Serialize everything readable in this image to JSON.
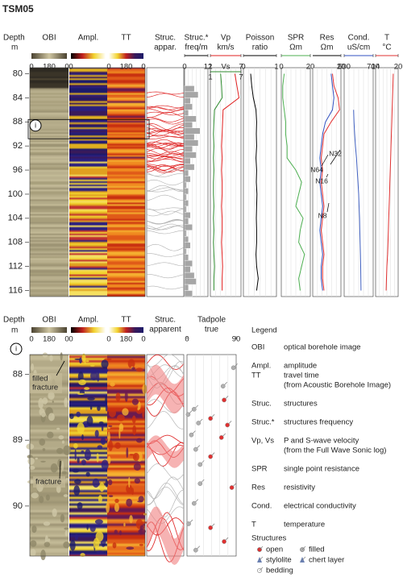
{
  "title": "TSM05",
  "images": [
    {
      "label": "OBI",
      "lim": [
        0,
        360
      ],
      "ticks": [
        0,
        180,
        {
          "value": 360,
          "label": "0"
        }
      ]
    },
    {
      "label": "Ampl.",
      "lim": [
        0,
        360
      ],
      "ticks": [
        0
      ]
    },
    {
      "label": "TT",
      "lim": [
        0,
        360
      ],
      "ticks": [
        0,
        180,
        {
          "value": 360,
          "label": "0"
        }
      ]
    }
  ],
  "top_panel": {
    "depth_label": "Depth",
    "depth_unit": "m",
    "ylim": [
      79,
      117
    ],
    "yticks": [
      80,
      84,
      88,
      92,
      96,
      100,
      104,
      108,
      112,
      116
    ],
    "struc_label": [
      "Struc.",
      "appar."
    ],
    "circle_label": "i",
    "annotations": [
      "N64",
      "N32",
      "N16",
      "N8"
    ]
  },
  "chart_data": [
    {
      "type": "histogram",
      "title": "Struc.*",
      "xlabel": "freq/m",
      "color": "#a6a6a6",
      "axis_color": "#000000",
      "xlim": [
        0,
        12
      ],
      "xticks": [
        0,
        12
      ],
      "ylim": [
        79,
        117
      ],
      "bins": [
        82,
        83,
        84,
        85,
        86,
        87,
        88,
        89,
        90,
        91,
        92,
        93,
        94,
        95,
        96,
        97,
        98,
        99,
        100,
        101,
        102,
        103,
        104,
        105,
        106,
        107,
        108,
        109,
        110,
        111,
        112,
        113,
        114,
        115,
        116,
        117
      ],
      "values": [
        5,
        7,
        3,
        4,
        2,
        6,
        4,
        8,
        5,
        7,
        4,
        6,
        3,
        5,
        2,
        3,
        1,
        2,
        1,
        2,
        1,
        3,
        2,
        4,
        1,
        2,
        3,
        1,
        2,
        4,
        3,
        5,
        6,
        2,
        4
      ]
    },
    {
      "type": "line",
      "title": "Vp",
      "xlabel": "km/s",
      "axis_color": "#e02020",
      "xlim": [
        1,
        7
      ],
      "xticks": [
        1,
        7
      ],
      "x2label": "Vs",
      "x2lim": [
        1,
        7
      ],
      "x2ticks": [
        1,
        7
      ],
      "x2color": "#2e8b2e",
      "ylim": [
        79,
        117
      ],
      "y": [
        80,
        82,
        84,
        86,
        88,
        90,
        92,
        94,
        96,
        98,
        100,
        102,
        104,
        106,
        108,
        110,
        112,
        114,
        116
      ],
      "series": [
        {
          "color": "#e02020",
          "values": [
            5.8,
            6.2,
            6.6,
            3.5,
            3.4,
            3.3,
            3.2,
            3.3,
            3.2,
            3.3,
            3.3,
            3.2,
            3.3,
            3.3,
            3.2,
            3.3,
            3.4,
            3.3,
            3.3
          ]
        },
        {
          "color": "#2e8b2e",
          "axis": "x2",
          "values": [
            3.0,
            3.2,
            3.3,
            1.8,
            1.7,
            1.6,
            1.7,
            1.6,
            1.7,
            1.6,
            1.6,
            1.7,
            1.6,
            1.7,
            1.6,
            1.7,
            1.8,
            1.7,
            1.7
          ]
        }
      ]
    },
    {
      "type": "line",
      "title": "Poisson",
      "xlabel": "ratio",
      "axis_color": "#000000",
      "xlim": [
        0,
        1
      ],
      "xticks": [
        0,
        1
      ],
      "ylim": [
        79,
        117
      ],
      "y": [
        80,
        82,
        84,
        86,
        88,
        90,
        92,
        94,
        96,
        98,
        100,
        102,
        104,
        106,
        108,
        110,
        112,
        114,
        116
      ],
      "series": [
        {
          "color": "#000000",
          "values": [
            0.22,
            0.25,
            0.3,
            0.38,
            0.4,
            0.39,
            0.4,
            0.38,
            0.4,
            0.39,
            0.41,
            0.4,
            0.39,
            0.4,
            0.4,
            0.38,
            0.4,
            0.45,
            0.4
          ]
        }
      ]
    },
    {
      "type": "line",
      "title": "SPR",
      "xlabel": "Ωm",
      "axis_color": "#4caf50",
      "xlim": [
        0,
        20
      ],
      "xticks": [
        0,
        20
      ],
      "ylim": [
        79,
        117
      ],
      "y": [
        80,
        82,
        84,
        86,
        88,
        90,
        92,
        94,
        96,
        98,
        100,
        102,
        104,
        106,
        108,
        110,
        112,
        114,
        116
      ],
      "series": [
        {
          "color": "#4caf50",
          "values": [
            2,
            1,
            1,
            2,
            3,
            3,
            4,
            4,
            10,
            14,
            12,
            10,
            15,
            13,
            12,
            16,
            14,
            12,
            13
          ]
        }
      ]
    },
    {
      "type": "line",
      "title": "Res",
      "xlabel": "Ωm",
      "axis_color": "#000000",
      "xlim": [
        0,
        20
      ],
      "xticks": [
        20
      ],
      "ylim": [
        79,
        117
      ],
      "y": [
        80,
        82,
        84,
        86,
        88,
        90,
        92,
        94,
        96,
        98,
        100,
        102,
        104,
        106,
        108,
        110,
        112,
        114,
        116
      ],
      "series": [
        {
          "color": "#e53030",
          "values": [
            14,
            15,
            18,
            19,
            13,
            8,
            7,
            6,
            7,
            6,
            7,
            8,
            7,
            6,
            7,
            8,
            7,
            7,
            8
          ]
        },
        {
          "color": "#3050c0",
          "values": [
            13,
            14,
            15,
            14,
            9,
            7,
            6,
            5,
            6,
            5,
            6,
            7,
            6,
            5,
            6,
            7,
            6,
            6,
            7
          ]
        }
      ]
    },
    {
      "type": "line",
      "title": "Cond.",
      "xlabel": "uS/cm",
      "axis_color": "#3050c0",
      "xlim": [
        500,
        700
      ],
      "xticks": [
        500,
        700
      ],
      "ylim": [
        79,
        117
      ],
      "y": [
        80,
        82,
        84,
        86,
        88,
        90,
        92,
        94,
        96,
        98,
        100,
        102,
        104,
        106,
        108,
        110,
        112,
        114,
        116
      ],
      "series": [
        {
          "color": "#4060c0",
          "values": [
            null,
            null,
            null,
            565,
            568,
            572,
            578,
            585,
            590,
            595,
            600,
            603,
            606,
            608,
            610,
            612,
            614,
            615,
            616
          ]
        }
      ]
    },
    {
      "type": "line",
      "title": "T",
      "xlabel": "°C",
      "axis_color": "#e03030",
      "xlim": [
        14,
        20
      ],
      "xticks": [
        14,
        20
      ],
      "ylim": [
        79,
        117
      ],
      "y": [
        80,
        82,
        84,
        86,
        88,
        90,
        92,
        94,
        96,
        98,
        100,
        102,
        104,
        106,
        108,
        110,
        112,
        114,
        116
      ],
      "series": [
        {
          "color": "#e03030",
          "values": [
            18.7,
            18.6,
            18.5,
            18.4,
            18.3,
            18.2,
            18.1,
            18.0,
            17.9,
            17.8,
            17.7,
            17.6,
            17.5,
            17.4,
            17.3,
            17.2,
            17.0,
            16.9,
            16.8
          ]
        }
      ]
    },
    {
      "type": "scatter",
      "title": "Tadpole",
      "xlabel": "true",
      "axis_color": "#ffffff",
      "xlim": [
        0,
        90
      ],
      "xticks": [
        0,
        90
      ],
      "ylim": [
        87.7,
        90.76
      ],
      "series": [
        {
          "name": "open",
          "color": "#e03030",
          "y": [
            88.39,
            88.67,
            88.77,
            88.96,
            89.25,
            89.72,
            90.33,
            90.54
          ],
          "values": [
            68,
            43,
            74,
            63,
            43,
            82,
            43,
            68
          ]
        },
        {
          "name": "filled",
          "color": "#b0b0b0",
          "y": [
            87.9,
            88.18,
            88.53,
            88.61,
            88.74,
            88.92,
            89.14,
            89.37,
            89.66,
            89.96,
            90.27,
            90.67
          ],
          "values": [
            85,
            66,
            13,
            2,
            21,
            8,
            16,
            24,
            24,
            13,
            3,
            16
          ]
        }
      ]
    }
  ],
  "detail": {
    "depth_label": "Depth",
    "depth_unit": "m",
    "circle_label": "i",
    "ylim": [
      87.7,
      90.76
    ],
    "yticks": [
      88,
      89,
      90
    ],
    "struc_label": [
      "Struc.",
      "apparent"
    ],
    "annotations": [
      [
        "filled",
        "fracture"
      ],
      [
        "fracture"
      ]
    ]
  },
  "legend": {
    "title": "Legend",
    "items": [
      {
        "key": [
          "OBI"
        ],
        "desc": [
          "optical borehole image"
        ]
      },
      {
        "key": [
          "Ampl.",
          "TT"
        ],
        "desc": [
          "amplitude",
          "travel time",
          "(from Acoustic Borehole Image)"
        ]
      },
      {
        "key": [
          "Struc."
        ],
        "desc": [
          "structures"
        ]
      },
      {
        "key": [
          "Struc.*"
        ],
        "desc": [
          "structures frequency"
        ]
      },
      {
        "key": [
          "Vp, Vs"
        ],
        "desc": [
          "P and S-wave velocity",
          "(from the Full Wave Sonic log)"
        ]
      },
      {
        "key": [
          "SPR"
        ],
        "desc": [
          "single point resistance"
        ]
      },
      {
        "key": [
          "Res"
        ],
        "desc": [
          "resistivity"
        ]
      },
      {
        "key": [
          "Cond."
        ],
        "desc": [
          "electrical conductivity"
        ]
      },
      {
        "key": [
          "T"
        ],
        "desc": [
          "temperature"
        ]
      }
    ],
    "structures_title": "Structures",
    "structures": [
      "open",
      "filled",
      "stylolite",
      "chert layer",
      "bedding"
    ]
  }
}
